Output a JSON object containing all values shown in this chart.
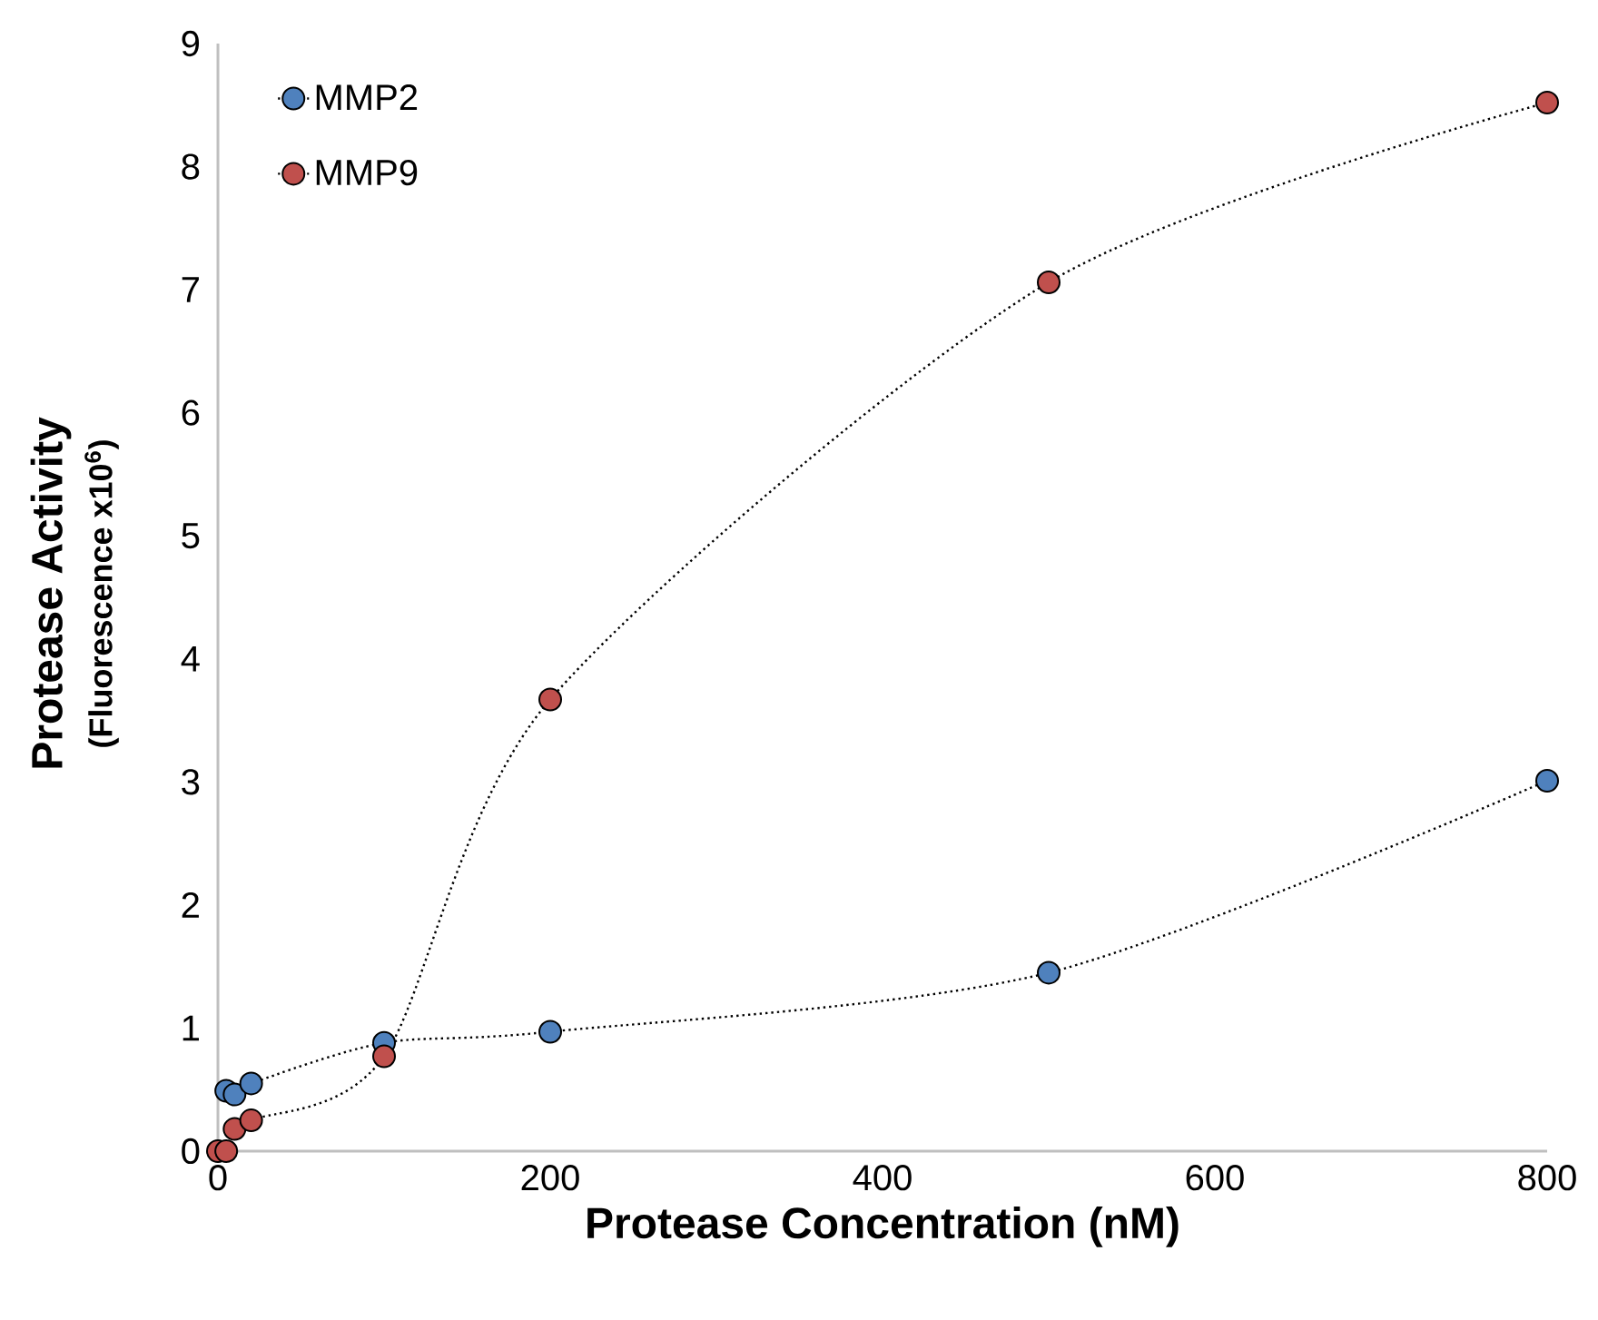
{
  "chart_data": {
    "type": "line",
    "xlabel": "Protease Concentration (nM)",
    "ylabel": "Protease Activity",
    "annotations": [
      "(Fluorescence x10$^{6}$)"
    ],
    "xlim": [
      0,
      800
    ],
    "ylim": [
      0,
      9
    ],
    "xticks": [
      0,
      200,
      400,
      600,
      800
    ],
    "yticks": [
      0,
      1,
      2,
      3,
      4,
      5,
      6,
      7,
      8,
      9
    ],
    "grid": false,
    "legend": "top left",
    "marker": "circle",
    "line_style": "dotted",
    "series": [
      {
        "name": "MMP2",
        "color": "#4f81bd",
        "x": [
          5,
          10,
          20,
          100,
          200,
          500,
          800
        ],
        "values": [
          0.49,
          0.46,
          0.55,
          0.88,
          0.97,
          1.45,
          3.01
        ]
      },
      {
        "name": "MMP9",
        "color": "#c0504d",
        "x": [
          0,
          5,
          10,
          20,
          100,
          200,
          500,
          800
        ],
        "values": [
          0,
          0,
          0.18,
          0.25,
          0.77,
          3.67,
          7.06,
          8.52
        ]
      }
    ]
  }
}
